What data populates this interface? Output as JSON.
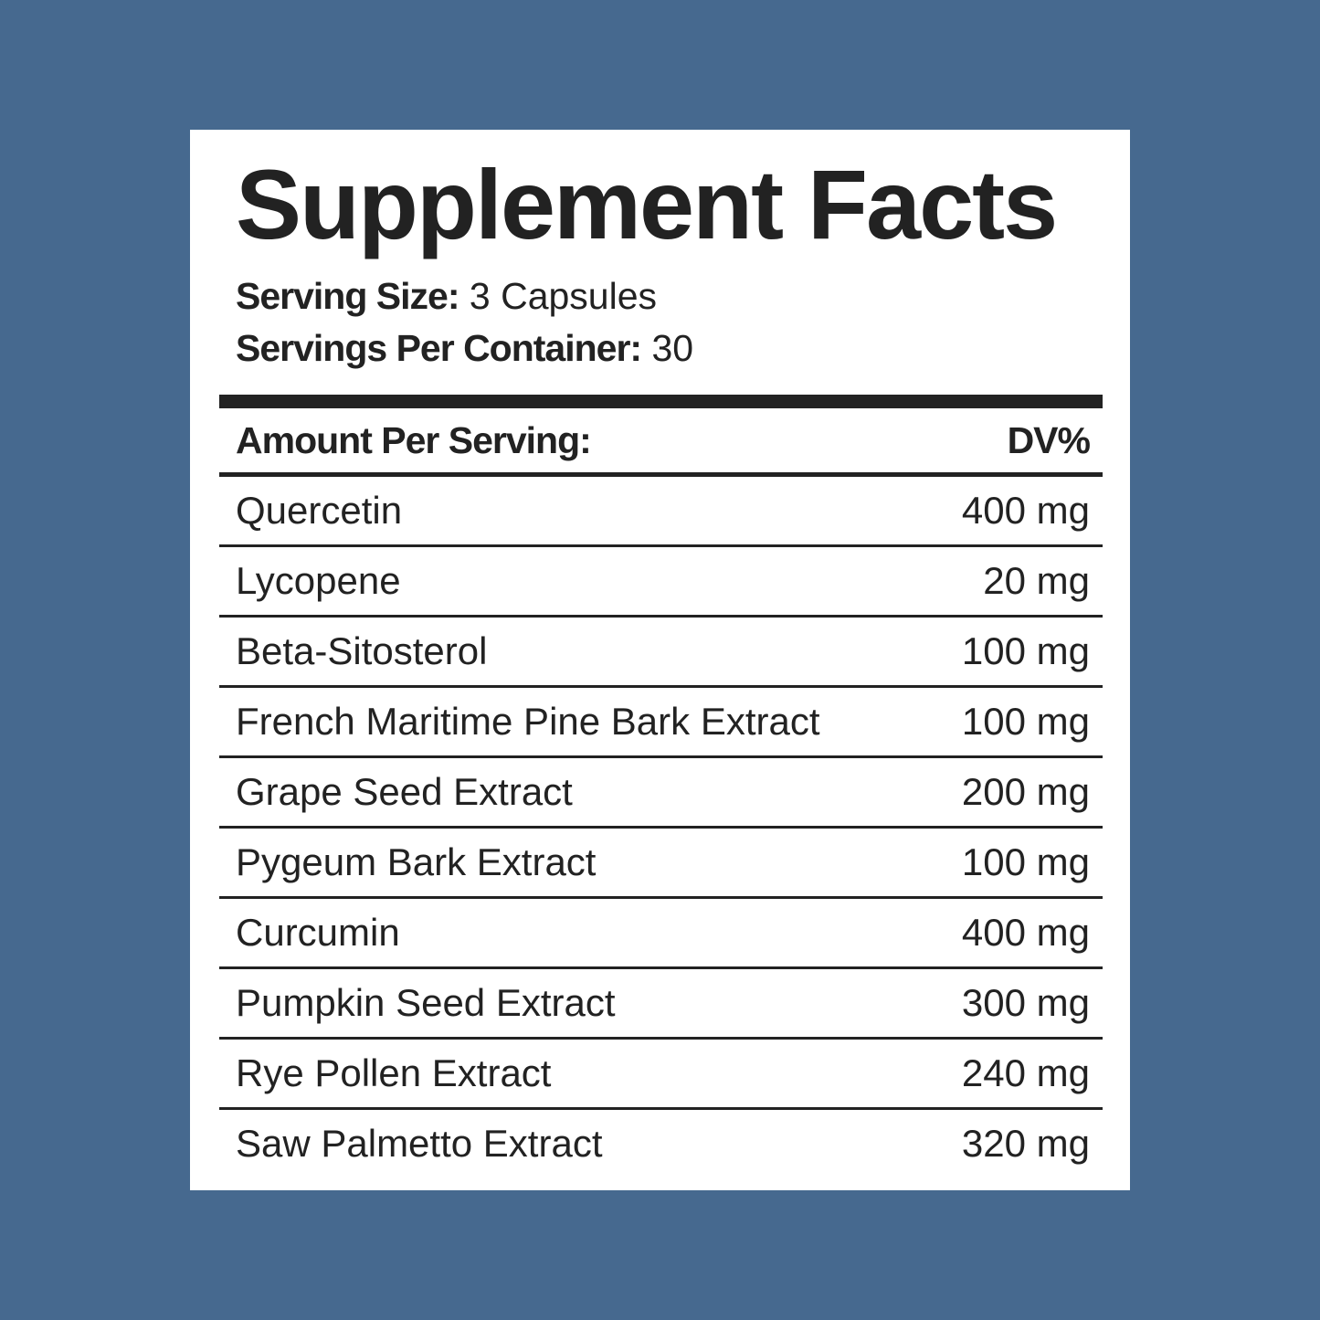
{
  "title": "Supplement Facts",
  "serving_size": {
    "label": "Serving Size:",
    "value": "3 Capsules"
  },
  "servings_per_container": {
    "label": "Servings Per Container:",
    "value": "30"
  },
  "header": {
    "left": "Amount Per Serving:",
    "right": "DV%"
  },
  "ingredients": [
    {
      "name": "Quercetin",
      "amount": "400 mg"
    },
    {
      "name": "Lycopene",
      "amount": "20 mg"
    },
    {
      "name": "Beta-Sitosterol",
      "amount": "100 mg"
    },
    {
      "name": "French Maritime Pine Bark Extract",
      "amount": "100 mg"
    },
    {
      "name": "Grape Seed Extract",
      "amount": "200 mg"
    },
    {
      "name": "Pygeum Bark Extract",
      "amount": "100 mg"
    },
    {
      "name": "Curcumin",
      "amount": "400 mg"
    },
    {
      "name": "Pumpkin Seed Extract",
      "amount": "300 mg"
    },
    {
      "name": "Rye Pollen Extract",
      "amount": "240 mg"
    },
    {
      "name": "Saw Palmetto Extract",
      "amount": "320 mg"
    }
  ],
  "colors": {
    "background": "#46698f",
    "label": "#ffffff",
    "text": "#222222"
  }
}
